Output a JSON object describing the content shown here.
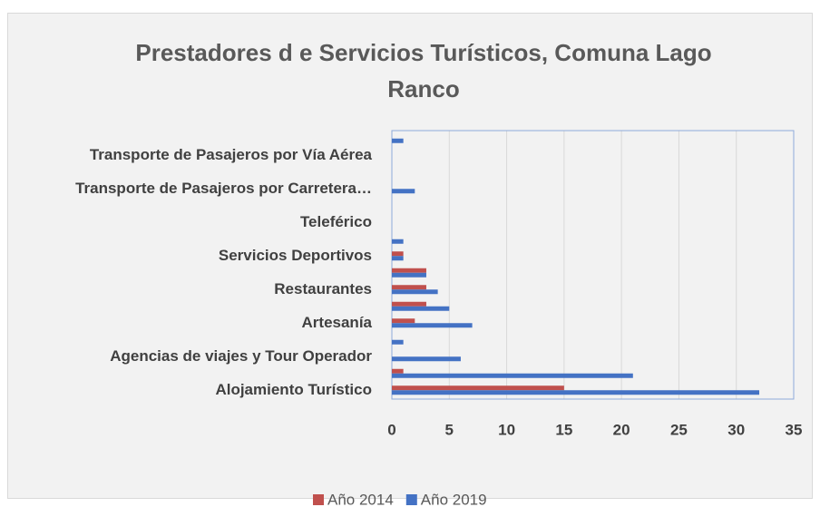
{
  "chart_data": {
    "type": "bar",
    "orientation": "horizontal",
    "title": "Prestadores d e Servicios Turísticos, Comuna Lago Ranco",
    "categories": [
      "Alojamiento Turístico",
      null,
      "Agencias de viajes y Tour Operador",
      null,
      "Artesanía",
      null,
      "Restaurantes",
      null,
      "Servicios Deportivos",
      null,
      "Teleférico",
      null,
      "Transporte de Pasajeros por Carretera…",
      null,
      "Transporte de Pasajeros por Vía Aérea",
      null
    ],
    "series": [
      {
        "name": "Año 2014",
        "color": "#c0504d",
        "values": [
          15,
          1,
          0,
          0,
          2,
          3,
          3,
          3,
          1,
          0,
          0,
          0,
          0,
          0,
          0,
          0
        ]
      },
      {
        "name": "Año 2019",
        "color": "#4472c4",
        "values": [
          32,
          21,
          6,
          1,
          7,
          5,
          4,
          3,
          1,
          1,
          0,
          0,
          2,
          0,
          0,
          1
        ]
      }
    ],
    "xlim": [
      0,
      35
    ],
    "xticks": [
      0,
      5,
      10,
      15,
      20,
      25,
      30,
      35
    ],
    "grid": true,
    "legend": "bottom"
  }
}
